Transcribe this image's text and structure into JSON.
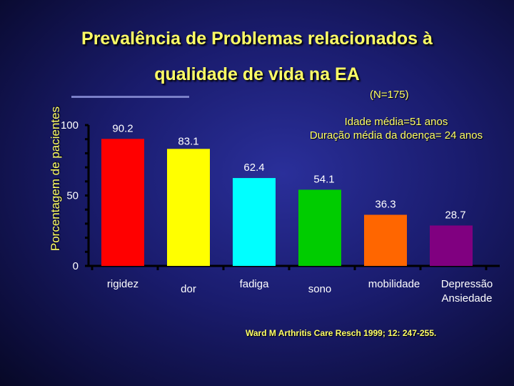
{
  "chart_data": {
    "type": "bar",
    "title_line1": "Prevalência de Problemas relacionados à",
    "title_line2": "qualidade de vida na EA",
    "ylabel": "Porcentagem de pacientes",
    "xlabel": "",
    "ylim": [
      0,
      100
    ],
    "yticks": [
      0,
      50,
      100
    ],
    "categories": [
      [
        "rigidez"
      ],
      [
        "dor"
      ],
      [
        "fadiga"
      ],
      [
        "sono"
      ],
      [
        "mobilidade"
      ],
      [
        "Depressão",
        "Ansiedade"
      ]
    ],
    "values": [
      90.2,
      83.1,
      62.4,
      54.1,
      36.3,
      28.7
    ],
    "value_labels": [
      "90.2",
      "83.1",
      "62.4",
      "54.1",
      "36.3",
      "28.7"
    ],
    "bar_colors": [
      "#ff0000",
      "#ffff00",
      "#00ffff",
      "#00cc00",
      "#ff6600",
      "#800080"
    ],
    "grid": false
  },
  "annotations": {
    "sample": "(N=175)",
    "age": "Idade média=51 anos",
    "duration": "Duração média da doença= 24 anos",
    "source": "Ward M Arthritis Care Resch 1999; 12: 247-255."
  },
  "colors": {
    "title": "#ffff66",
    "axis": "#000000",
    "text": "#ffffff"
  }
}
